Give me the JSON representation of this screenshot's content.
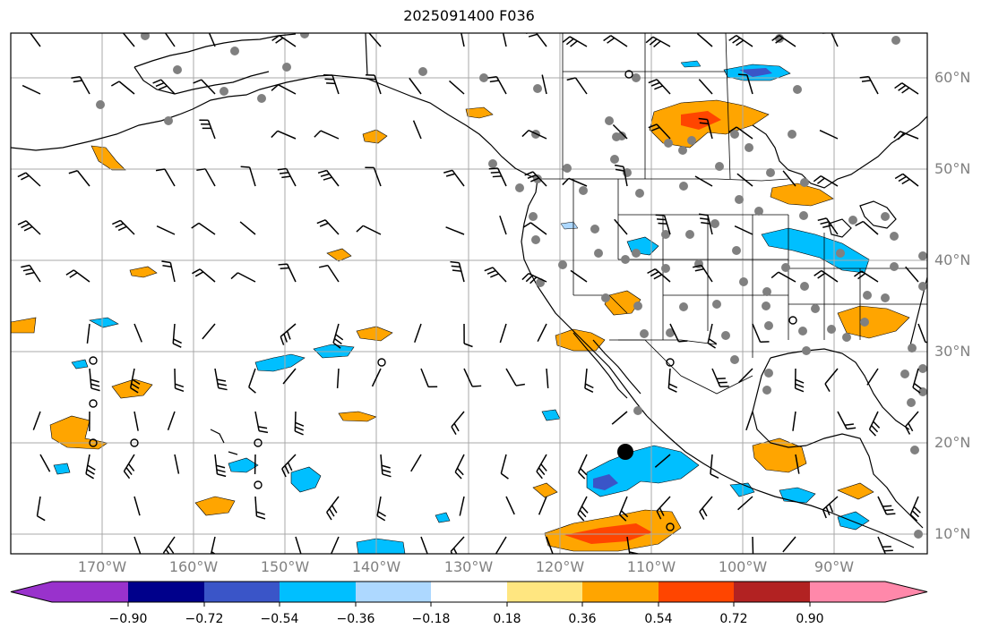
{
  "title": "2025091400 F036",
  "longitude_labels": [
    "170°W",
    "160°W",
    "150°W",
    "140°W",
    "130°W",
    "120°W",
    "110°W",
    "100°W",
    "90°W"
  ],
  "latitude_labels": [
    "60°N",
    "50°N",
    "40°N",
    "30°N",
    "20°N",
    "10°N"
  ],
  "colorbar": {
    "tick_labels": [
      "−0.90",
      "−0.72",
      "−0.54",
      "−0.36",
      "−0.18",
      "0.18",
      "0.36",
      "0.54",
      "0.72",
      "0.90"
    ],
    "colors": [
      "#9932cc",
      "#00008b",
      "#3a55c8",
      "#00bfff",
      "#add8ff",
      "#ffffff",
      "#ffe680",
      "#ffa500",
      "#ff4500",
      "#b22222",
      "#ff88aa"
    ]
  },
  "legend_colors": {
    "gridline": "#a9a9a9",
    "coastline": "#000000",
    "station_dot": "#808080",
    "wind_barb": "#000000"
  }
}
